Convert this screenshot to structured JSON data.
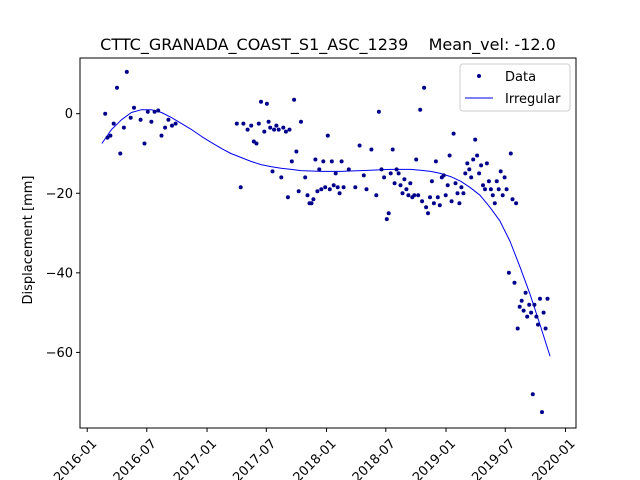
{
  "chart_data": {
    "type": "scatter",
    "title": "CTTC_GRANADA_COAST_S1_ASC_1239    Mean_vel: -12.0",
    "xlabel": "",
    "ylabel": "Displacement [mm]",
    "xlim": [
      "2015-12-10",
      "2020-02-02"
    ],
    "ylim": [
      -79,
      14
    ],
    "x_ticks": [
      "2016-01-01",
      "2016-07-01",
      "2017-01-01",
      "2017-07-01",
      "2018-01-01",
      "2018-07-01",
      "2019-01-01",
      "2019-07-01",
      "2020-01-01"
    ],
    "x_tick_labels": [
      "2016-01",
      "2016-07",
      "2017-01",
      "2017-07",
      "2018-01",
      "2018-07",
      "2019-01",
      "2019-07",
      "2020-01"
    ],
    "y_ticks": [
      0,
      -20,
      -40,
      -60
    ],
    "y_tick_labels": [
      "0",
      "−20",
      "−40",
      "−60"
    ],
    "legend_position": "top-right",
    "grid": false,
    "series": [
      {
        "name": "Data",
        "kind": "scatter",
        "color": "#00008b",
        "points": [
          [
            "2016-02-25",
            0
          ],
          [
            "2016-03-03",
            -6
          ],
          [
            "2016-03-12",
            -5.5
          ],
          [
            "2016-03-22",
            -2.5
          ],
          [
            "2016-04-01",
            6.5
          ],
          [
            "2016-04-11",
            -10
          ],
          [
            "2016-04-22",
            -3.5
          ],
          [
            "2016-05-01",
            10.5
          ],
          [
            "2016-05-13",
            -1
          ],
          [
            "2016-05-23",
            1.5
          ],
          [
            "2016-06-12",
            -1.5
          ],
          [
            "2016-06-24",
            -7.5
          ],
          [
            "2016-07-04",
            0.5
          ],
          [
            "2016-07-15",
            -2
          ],
          [
            "2016-07-25",
            0.5
          ],
          [
            "2016-08-05",
            0.8
          ],
          [
            "2016-08-15",
            -5.5
          ],
          [
            "2016-08-26",
            -3.5
          ],
          [
            "2016-09-05",
            -1.5
          ],
          [
            "2016-09-16",
            -3
          ],
          [
            "2016-09-27",
            -2.5
          ],
          [
            "2017-04-02",
            -2.5
          ],
          [
            "2017-04-14",
            -18.5
          ],
          [
            "2017-04-22",
            -2.5
          ],
          [
            "2017-05-05",
            -4
          ],
          [
            "2017-05-16",
            -3
          ],
          [
            "2017-05-24",
            -7
          ],
          [
            "2017-06-01",
            -7.5
          ],
          [
            "2017-06-08",
            -2.5
          ],
          [
            "2017-06-15",
            3
          ],
          [
            "2017-06-25",
            -4.5
          ],
          [
            "2017-07-03",
            2.5
          ],
          [
            "2017-07-08",
            -2
          ],
          [
            "2017-07-13",
            -3.5
          ],
          [
            "2017-07-20",
            -14.5
          ],
          [
            "2017-07-25",
            -4
          ],
          [
            "2017-08-01",
            -3
          ],
          [
            "2017-08-08",
            -4
          ],
          [
            "2017-08-16",
            -16
          ],
          [
            "2017-08-22",
            -3.5
          ],
          [
            "2017-08-30",
            -4.5
          ],
          [
            "2017-09-05",
            -21
          ],
          [
            "2017-09-10",
            -4
          ],
          [
            "2017-09-17",
            -12
          ],
          [
            "2017-09-24",
            3.5
          ],
          [
            "2017-10-01",
            -9.5
          ],
          [
            "2017-10-08",
            -19.5
          ],
          [
            "2017-10-15",
            -2
          ],
          [
            "2017-10-28",
            -16
          ],
          [
            "2017-11-04",
            -20.5
          ],
          [
            "2017-11-10",
            -22.5
          ],
          [
            "2017-11-16",
            -22.5
          ],
          [
            "2017-11-22",
            -21.5
          ],
          [
            "2017-11-28",
            -11.5
          ],
          [
            "2017-12-04",
            -19.5
          ],
          [
            "2017-12-10",
            -14
          ],
          [
            "2017-12-16",
            -19
          ],
          [
            "2017-12-22",
            -12
          ],
          [
            "2017-12-28",
            -18.5
          ],
          [
            "2018-01-05",
            -5.5
          ],
          [
            "2018-01-11",
            -19
          ],
          [
            "2018-01-17",
            -12
          ],
          [
            "2018-01-23",
            -18
          ],
          [
            "2018-01-29",
            -15
          ],
          [
            "2018-02-04",
            -18.5
          ],
          [
            "2018-02-10",
            -20
          ],
          [
            "2018-02-16",
            -12
          ],
          [
            "2018-02-22",
            -18.5
          ],
          [
            "2018-03-10",
            -14
          ],
          [
            "2018-03-30",
            -18.5
          ],
          [
            "2018-04-12",
            -8
          ],
          [
            "2018-04-25",
            -15.5
          ],
          [
            "2018-05-03",
            -19
          ],
          [
            "2018-05-18",
            -9
          ],
          [
            "2018-06-02",
            -20.5
          ],
          [
            "2018-06-10",
            0.5
          ],
          [
            "2018-06-18",
            -14
          ],
          [
            "2018-06-26",
            -16
          ],
          [
            "2018-07-04",
            -26.5
          ],
          [
            "2018-07-10",
            -25
          ],
          [
            "2018-07-16",
            -15
          ],
          [
            "2018-07-22",
            -9
          ],
          [
            "2018-07-28",
            -17.5
          ],
          [
            "2018-08-03",
            -14
          ],
          [
            "2018-08-09",
            -15
          ],
          [
            "2018-08-15",
            -18
          ],
          [
            "2018-08-21",
            -20
          ],
          [
            "2018-08-27",
            -16.5
          ],
          [
            "2018-09-02",
            -19
          ],
          [
            "2018-09-08",
            -20.5
          ],
          [
            "2018-09-14",
            -17.5
          ],
          [
            "2018-09-20",
            -21
          ],
          [
            "2018-09-26",
            -20.5
          ],
          [
            "2018-10-02",
            -11.5
          ],
          [
            "2018-10-08",
            -20.5
          ],
          [
            "2018-10-14",
            1
          ],
          [
            "2018-10-20",
            -22
          ],
          [
            "2018-10-26",
            6.5
          ],
          [
            "2018-11-01",
            -23.5
          ],
          [
            "2018-11-07",
            -25
          ],
          [
            "2018-11-13",
            -21
          ],
          [
            "2018-11-19",
            -17
          ],
          [
            "2018-11-25",
            -22.5
          ],
          [
            "2018-12-01",
            -12
          ],
          [
            "2018-12-07",
            -21
          ],
          [
            "2018-12-13",
            -23
          ],
          [
            "2018-12-19",
            -16
          ],
          [
            "2018-12-25",
            -15.5
          ],
          [
            "2018-12-31",
            -20.5
          ],
          [
            "2019-01-06",
            -18
          ],
          [
            "2019-01-12",
            -10.5
          ],
          [
            "2019-01-18",
            -22
          ],
          [
            "2019-01-24",
            -5
          ],
          [
            "2019-01-30",
            -17.5
          ],
          [
            "2019-02-05",
            -20
          ],
          [
            "2019-02-11",
            -22.5
          ],
          [
            "2019-02-17",
            -18.5
          ],
          [
            "2019-02-23",
            -20
          ],
          [
            "2019-03-01",
            -15
          ],
          [
            "2019-03-07",
            -12.5
          ],
          [
            "2019-03-13",
            -14
          ],
          [
            "2019-03-19",
            -16
          ],
          [
            "2019-03-25",
            -11.5
          ],
          [
            "2019-03-31",
            -6.5
          ],
          [
            "2019-04-06",
            -10.5
          ],
          [
            "2019-04-12",
            -15
          ],
          [
            "2019-04-18",
            -13
          ],
          [
            "2019-04-24",
            -18
          ],
          [
            "2019-04-30",
            -19
          ],
          [
            "2019-05-06",
            -12.5
          ],
          [
            "2019-05-12",
            -17
          ],
          [
            "2019-05-18",
            -19
          ],
          [
            "2019-05-24",
            -20.5
          ],
          [
            "2019-05-30",
            -22.5
          ],
          [
            "2019-06-05",
            -17
          ],
          [
            "2019-06-11",
            -19
          ],
          [
            "2019-06-17",
            -14.5
          ],
          [
            "2019-06-23",
            -20.5
          ],
          [
            "2019-06-29",
            -16
          ],
          [
            "2019-07-05",
            -19
          ],
          [
            "2019-07-12",
            -40
          ],
          [
            "2019-07-18",
            -10
          ],
          [
            "2019-07-23",
            -21.5
          ],
          [
            "2019-07-29",
            -42.5
          ],
          [
            "2019-08-03",
            -22.5
          ],
          [
            "2019-08-08",
            -54
          ],
          [
            "2019-08-14",
            -48.5
          ],
          [
            "2019-08-20",
            -47
          ],
          [
            "2019-08-26",
            -49.5
          ],
          [
            "2019-09-01",
            -45
          ],
          [
            "2019-09-06",
            -51
          ],
          [
            "2019-09-12",
            -48
          ],
          [
            "2019-09-18",
            -50
          ],
          [
            "2019-09-23",
            -70.5
          ],
          [
            "2019-09-28",
            -48
          ],
          [
            "2019-10-04",
            -51
          ],
          [
            "2019-10-09",
            -53
          ],
          [
            "2019-10-15",
            -46.5
          ],
          [
            "2019-10-21",
            -75
          ],
          [
            "2019-10-26",
            -50
          ],
          [
            "2019-11-01",
            -54
          ],
          [
            "2019-11-07",
            -46.5
          ]
        ]
      },
      {
        "name": "Irregular",
        "kind": "line",
        "color": "#0000ee",
        "points": [
          [
            "2016-02-15",
            -7.5
          ],
          [
            "2016-03-15",
            -4
          ],
          [
            "2016-04-15",
            -1.5
          ],
          [
            "2016-05-15",
            0.3
          ],
          [
            "2016-06-15",
            1
          ],
          [
            "2016-07-15",
            1
          ],
          [
            "2016-08-15",
            0.3
          ],
          [
            "2016-09-15",
            -1
          ],
          [
            "2016-10-15",
            -2.5
          ],
          [
            "2016-11-15",
            -4
          ],
          [
            "2016-12-15",
            -5.7
          ],
          [
            "2017-01-15",
            -7.3
          ],
          [
            "2017-02-15",
            -8.8
          ],
          [
            "2017-03-15",
            -10
          ],
          [
            "2017-04-15",
            -11
          ],
          [
            "2017-05-15",
            -12
          ],
          [
            "2017-06-15",
            -12.8
          ],
          [
            "2017-07-15",
            -13.3
          ],
          [
            "2017-08-15",
            -13.7
          ],
          [
            "2017-09-15",
            -14
          ],
          [
            "2017-10-15",
            -14.3
          ],
          [
            "2017-11-15",
            -14.4
          ],
          [
            "2017-12-15",
            -14.5
          ],
          [
            "2018-01-15",
            -14.5
          ],
          [
            "2018-02-15",
            -14.5
          ],
          [
            "2018-03-15",
            -14.4
          ],
          [
            "2018-04-15",
            -14.3
          ],
          [
            "2018-05-15",
            -14.2
          ],
          [
            "2018-06-15",
            -14.1
          ],
          [
            "2018-07-15",
            -14
          ],
          [
            "2018-08-15",
            -14
          ],
          [
            "2018-09-15",
            -14
          ],
          [
            "2018-10-15",
            -14.2
          ],
          [
            "2018-11-15",
            -14.5
          ],
          [
            "2018-12-15",
            -15
          ],
          [
            "2019-01-15",
            -15.8
          ],
          [
            "2019-02-15",
            -17
          ],
          [
            "2019-03-15",
            -18.5
          ],
          [
            "2019-04-15",
            -20.5
          ],
          [
            "2019-05-15",
            -23.5
          ],
          [
            "2019-06-15",
            -27
          ],
          [
            "2019-07-15",
            -32
          ],
          [
            "2019-08-15",
            -38.5
          ],
          [
            "2019-09-15",
            -45.5
          ],
          [
            "2019-10-15",
            -53
          ],
          [
            "2019-11-15",
            -61
          ]
        ]
      }
    ]
  }
}
